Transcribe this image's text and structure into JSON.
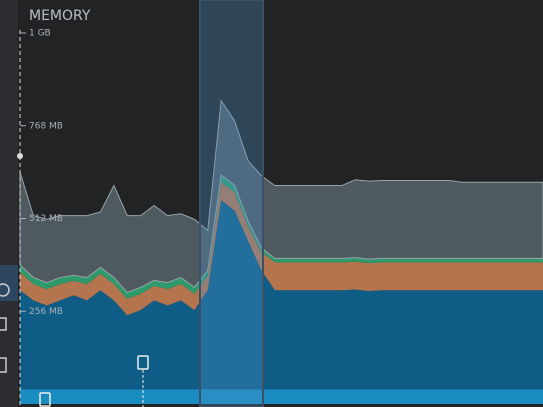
{
  "chart_data": {
    "type": "stacked-area",
    "title": "MEMORY",
    "ylim": [
      0,
      1024
    ],
    "yticks": [
      {
        "value": 1024,
        "label": "1 GB"
      },
      {
        "value": 768,
        "label": "768 MB"
      },
      {
        "value": 512,
        "label": "512 MB"
      },
      {
        "value": 256,
        "label": "256 MB"
      }
    ],
    "series": [
      {
        "color": "#1b8cc0",
        "values": [
          40,
          40,
          40,
          40,
          40,
          40,
          40,
          40,
          40,
          40,
          40,
          40,
          40,
          40,
          40,
          40,
          40,
          40,
          40,
          40,
          40,
          40,
          40,
          40,
          40,
          40,
          40,
          40,
          40,
          40,
          40,
          40,
          40,
          40,
          40,
          40,
          40,
          40,
          40,
          40
        ]
      },
      {
        "color": "#0f5d86",
        "values": [
          274,
          246,
          232,
          246,
          260,
          246,
          274,
          246,
          205,
          219,
          246,
          232,
          246,
          219,
          274,
          522,
          494,
          411,
          329,
          274,
          274,
          274,
          274,
          274,
          274,
          276,
          272,
          274,
          274,
          274,
          274,
          274,
          274,
          274,
          274,
          274,
          274,
          274,
          274,
          274
        ]
      },
      {
        "color": "#b3744e",
        "values": [
          50,
          45,
          45,
          45,
          40,
          45,
          45,
          45,
          45,
          45,
          40,
          45,
          45,
          45,
          40,
          50,
          50,
          40,
          50,
          77,
          77,
          77,
          77,
          77,
          77,
          77,
          77,
          77,
          77,
          77,
          77,
          77,
          77,
          77,
          77,
          77,
          77,
          77,
          77,
          77
        ]
      },
      {
        "color": "#2e9a6c",
        "values": [
          20,
          18,
          18,
          18,
          15,
          18,
          18,
          18,
          18,
          18,
          15,
          18,
          18,
          18,
          15,
          20,
          20,
          15,
          12,
          11,
          11,
          11,
          11,
          11,
          11,
          11,
          11,
          11,
          11,
          11,
          11,
          11,
          11,
          11,
          11,
          11,
          11,
          11,
          11,
          11
        ]
      },
      {
        "color": "#4e5a60",
        "values": [
          256,
          171,
          175,
          171,
          165,
          171,
          153,
          254,
          212,
          198,
          207,
          185,
          176,
          188,
          110,
          205,
          178,
          166,
          199,
          201,
          201,
          201,
          201,
          201,
          201,
          215,
          215,
          215,
          215,
          215,
          215,
          215,
          215,
          210,
          210,
          210,
          210,
          210,
          210,
          210
        ]
      }
    ]
  }
}
